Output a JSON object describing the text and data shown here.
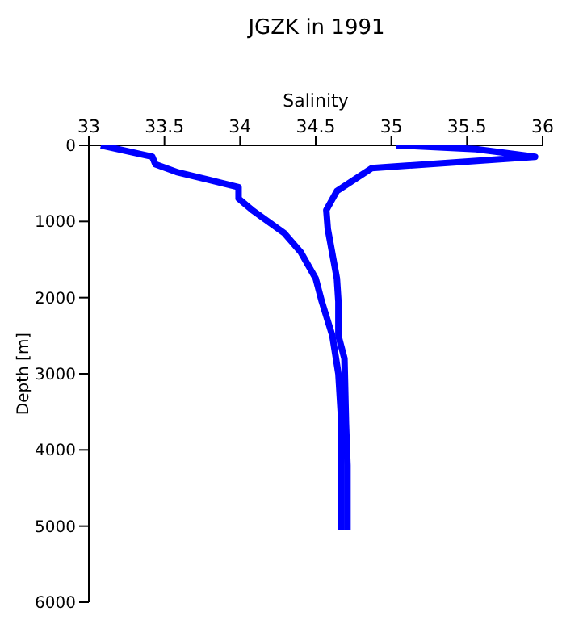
{
  "chart_data": {
    "type": "line",
    "title": "JGZK in 1991",
    "xlabel": "Salinity",
    "ylabel": "Depth [m]",
    "xlim": [
      33,
      36
    ],
    "xticks": [
      33,
      33.5,
      34,
      34.5,
      35,
      35.5,
      36
    ],
    "ylim": [
      6000,
      0
    ],
    "yticks": [
      0,
      1000,
      2000,
      3000,
      4000,
      5000,
      6000
    ],
    "marker": "none",
    "line_style": "solid",
    "series": [
      {
        "color": "#0000ff",
        "x": [
          33.08,
          33.42,
          33.44,
          33.58,
          33.99,
          33.99,
          34.08,
          34.29,
          34.4,
          34.5,
          34.54,
          34.61,
          34.65,
          34.67,
          34.67
        ],
        "values": [
          0,
          150,
          250,
          350,
          550,
          700,
          850,
          1150,
          1400,
          1750,
          2050,
          2500,
          3000,
          3650,
          5050
        ]
      },
      {
        "color": "#0000ff",
        "x": [
          35.03,
          35.56,
          35.95,
          34.87,
          34.64,
          34.57,
          34.58,
          34.64,
          34.65,
          34.65,
          34.69,
          34.7,
          34.71,
          34.71
        ],
        "values": [
          0,
          50,
          150,
          300,
          600,
          850,
          1100,
          1750,
          2050,
          2500,
          2800,
          3650,
          4200,
          5050
        ]
      }
    ]
  }
}
